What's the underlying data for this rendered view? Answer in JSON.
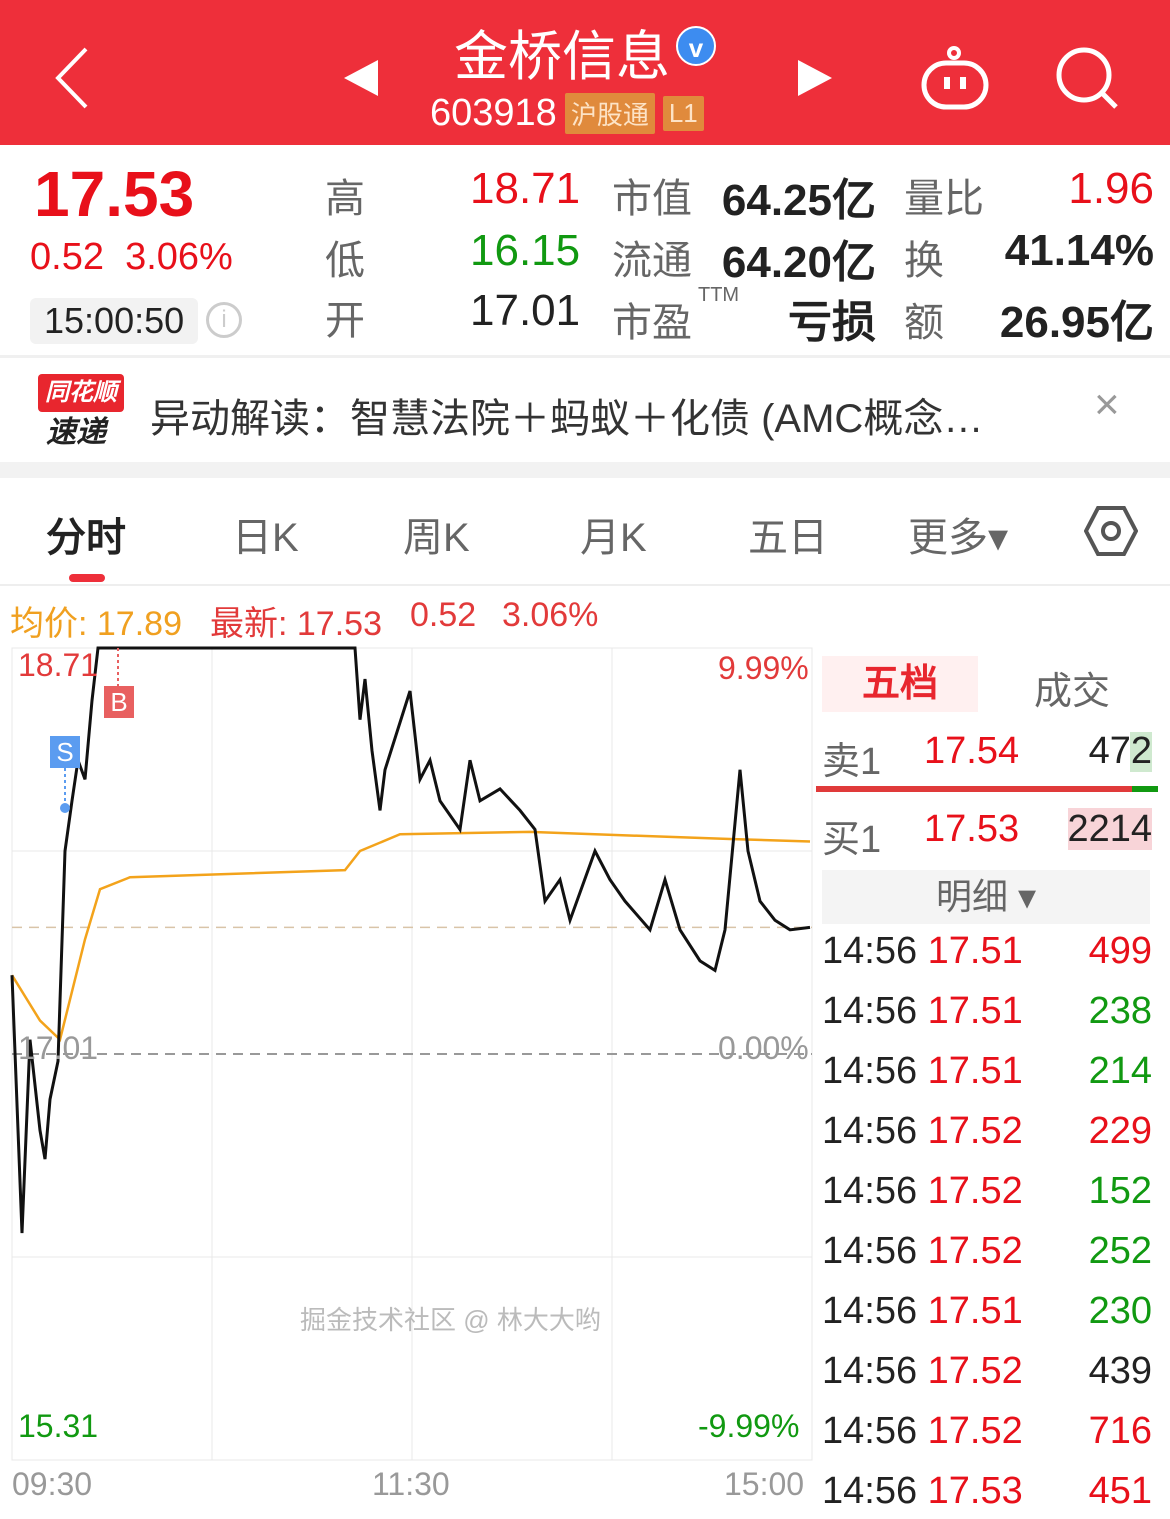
{
  "header": {
    "back_icon": "chevron-left-icon",
    "prev_icon": "triangle-left-icon",
    "next_icon": "triangle-right-icon",
    "title": "金桥信息",
    "verified": "v",
    "code": "603918",
    "tags": [
      "沪股通",
      "L1"
    ],
    "robot_icon": "robot-icon",
    "search_icon": "search-icon",
    "bg": "#ee2f3a"
  },
  "quote": {
    "price": "17.53",
    "change": "0.52",
    "change_pct": "3.06%",
    "time": "15:00:50",
    "stats": [
      {
        "label": "高",
        "value": "18.71",
        "color": "red"
      },
      {
        "label": "低",
        "value": "16.15",
        "color": "green"
      },
      {
        "label": "开",
        "value": "17.01",
        "color": "dark"
      }
    ],
    "stats2": [
      {
        "label": "市值",
        "value": "64.25亿"
      },
      {
        "label": "流通",
        "value": "64.20亿"
      },
      {
        "label": "市盈",
        "sup": "TTM",
        "value": "亏损"
      }
    ],
    "stats3": [
      {
        "label": "量比",
        "value": "1.96",
        "color": "red"
      },
      {
        "label": "换",
        "value": "41.14%",
        "color": "dark"
      },
      {
        "label": "额",
        "value": "26.95亿",
        "color": "dark"
      }
    ]
  },
  "news": {
    "logo_top": "同花顺",
    "logo_bottom": "速递",
    "text": "异动解读：智慧法院＋蚂蚁＋化债 (AMC概念…",
    "close": "×"
  },
  "tabs": [
    {
      "label": "分时",
      "active": true
    },
    {
      "label": "日K"
    },
    {
      "label": "周K"
    },
    {
      "label": "月K"
    },
    {
      "label": "五日"
    },
    {
      "label": "更多▾"
    }
  ],
  "settings_icon": "hexagon-settings-icon",
  "info": {
    "avg_label": "均价: 17.89",
    "latest_label": "最新: 17.53",
    "change": "0.52",
    "change_pct": "3.06%"
  },
  "chart_data": {
    "type": "line",
    "ylim": [
      15.31,
      18.71
    ],
    "prev_close": 17.01,
    "y_labels": {
      "top": "18.71",
      "mid": "17.01",
      "bottom": "15.31",
      "top_pct": "9.99%",
      "mid_pct": "0.00%",
      "bottom_pct": "-9.99%"
    },
    "x_ticks": [
      "09:30",
      "11:30",
      "15:00"
    ],
    "x_unit": "minutes of trading session (0-240)",
    "markers": [
      {
        "label": "S",
        "color": "#5b9cf0"
      },
      {
        "label": "B",
        "color": "#e86060"
      }
    ],
    "series": [
      {
        "key": "price",
        "color": "#111111",
        "points": [
          [
            0,
            17.34
          ],
          [
            3,
            16.26
          ],
          [
            5.4,
            17.07
          ],
          [
            8.4,
            16.69
          ],
          [
            9.9,
            16.57
          ],
          [
            11.4,
            16.82
          ],
          [
            13.8,
            16.98
          ],
          [
            15.9,
            17.86
          ],
          [
            18,
            18.07
          ],
          [
            19.8,
            18.24
          ],
          [
            21.9,
            18.16
          ],
          [
            24,
            18.49
          ],
          [
            25.8,
            18.71
          ],
          [
            102.9,
            18.71
          ],
          [
            104.4,
            18.41
          ],
          [
            105.9,
            18.58
          ],
          [
            108,
            18.28
          ],
          [
            110.4,
            18.03
          ],
          [
            111.9,
            18.2
          ],
          [
            119.4,
            18.53
          ],
          [
            122.4,
            18.16
          ],
          [
            125.4,
            18.24
          ],
          [
            128.4,
            18.07
          ],
          [
            134.4,
            17.95
          ],
          [
            137.4,
            18.24
          ],
          [
            140.4,
            18.07
          ],
          [
            146.4,
            18.12
          ],
          [
            152.4,
            18.03
          ],
          [
            156.9,
            17.95
          ],
          [
            159.9,
            17.65
          ],
          [
            164.4,
            17.74
          ],
          [
            167.4,
            17.57
          ],
          [
            174.9,
            17.86
          ],
          [
            179.4,
            17.74
          ],
          [
            183.9,
            17.65
          ],
          [
            191.4,
            17.53
          ],
          [
            195.9,
            17.74
          ],
          [
            200.4,
            17.53
          ],
          [
            206.4,
            17.4
          ],
          [
            210.9,
            17.36
          ],
          [
            213.9,
            17.53
          ],
          [
            218.4,
            18.2
          ],
          [
            220.8,
            17.86
          ],
          [
            224.4,
            17.65
          ],
          [
            228.9,
            17.57
          ],
          [
            233.4,
            17.53
          ],
          [
            239.4,
            17.54
          ]
        ]
      },
      {
        "key": "avg",
        "color": "#f3a31b",
        "points": [
          [
            0,
            17.34
          ],
          [
            8.4,
            17.15
          ],
          [
            14.4,
            17.07
          ],
          [
            21.9,
            17.49
          ],
          [
            26.4,
            17.7
          ],
          [
            35.4,
            17.75
          ],
          [
            99.9,
            17.78
          ],
          [
            104.4,
            17.86
          ],
          [
            116.4,
            17.93
          ],
          [
            155.4,
            17.94
          ],
          [
            215.4,
            17.91
          ],
          [
            239.4,
            17.9
          ]
        ]
      }
    ]
  },
  "orderbook": {
    "tabs": [
      "五档",
      "成交"
    ],
    "sell": {
      "label": "卖1",
      "price": "17.54",
      "vol": "472"
    },
    "buy": {
      "label": "买1",
      "price": "17.53",
      "vol": "2214"
    },
    "detail_label": "明细 ▾",
    "ticks": [
      {
        "t": "14:56",
        "p": "17.51",
        "v": "499",
        "vc": "red"
      },
      {
        "t": "14:56",
        "p": "17.51",
        "v": "238",
        "vc": "green"
      },
      {
        "t": "14:56",
        "p": "17.51",
        "v": "214",
        "vc": "green"
      },
      {
        "t": "14:56",
        "p": "17.52",
        "v": "229",
        "vc": "red"
      },
      {
        "t": "14:56",
        "p": "17.52",
        "v": "152",
        "vc": "green"
      },
      {
        "t": "14:56",
        "p": "17.52",
        "v": "252",
        "vc": "green"
      },
      {
        "t": "14:56",
        "p": "17.51",
        "v": "230",
        "vc": "green"
      },
      {
        "t": "14:56",
        "p": "17.52",
        "v": "439",
        "vc": "dark"
      },
      {
        "t": "14:56",
        "p": "17.52",
        "v": "716",
        "vc": "red"
      },
      {
        "t": "14:56",
        "p": "17.53",
        "v": "451",
        "vc": "red"
      }
    ]
  },
  "watermark": "掘金技术社区 @ 林大大哟"
}
